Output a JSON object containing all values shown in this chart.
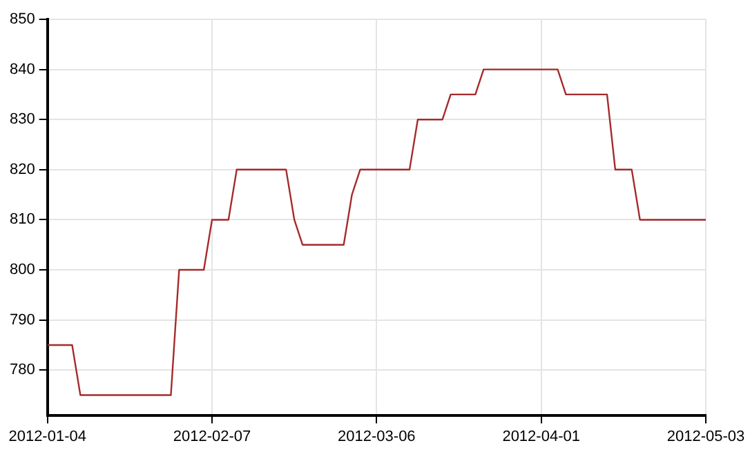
{
  "chart_data": {
    "type": "line",
    "categories": [
      "2012-01-04",
      null,
      null,
      null,
      null,
      null,
      null,
      null,
      null,
      null,
      null,
      null,
      null,
      null,
      null,
      null,
      null,
      null,
      null,
      null,
      "2012-02-07",
      null,
      null,
      null,
      null,
      null,
      null,
      null,
      null,
      null,
      null,
      null,
      null,
      null,
      null,
      null,
      null,
      null,
      null,
      null,
      "2012-03-06",
      null,
      null,
      null,
      null,
      null,
      null,
      null,
      null,
      null,
      null,
      null,
      null,
      null,
      null,
      null,
      null,
      null,
      null,
      null,
      "2012-04-01",
      null,
      null,
      null,
      null,
      null,
      null,
      null,
      null,
      null,
      null,
      null,
      null,
      null,
      null,
      null,
      null,
      null,
      null,
      null,
      "2012-05-03"
    ],
    "series": [
      {
        "color": "#a52a2a",
        "values": [
          785,
          785,
          785,
          785,
          775,
          775,
          775,
          775,
          775,
          775,
          775,
          775,
          775,
          775,
          775,
          775,
          800,
          800,
          800,
          800,
          810,
          810,
          810,
          820,
          820,
          820,
          820,
          820,
          820,
          820,
          810,
          805,
          805,
          805,
          805,
          805,
          805,
          815,
          820,
          820,
          820,
          820,
          820,
          820,
          820,
          830,
          830,
          830,
          830,
          835,
          835,
          835,
          835,
          840,
          840,
          840,
          840,
          840,
          840,
          840,
          840,
          840,
          840,
          835,
          835,
          835,
          835,
          835,
          835,
          820,
          820,
          820,
          810,
          810,
          810,
          810,
          810,
          810,
          810,
          810,
          810
        ]
      }
    ],
    "ylim": [
      771,
      850
    ],
    "yticks": [
      780,
      790,
      800,
      810,
      820,
      830,
      840,
      850
    ],
    "grid": true,
    "legend": false,
    "marker": "none",
    "line_style": "solid"
  }
}
